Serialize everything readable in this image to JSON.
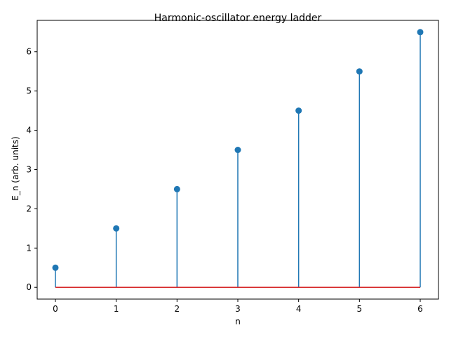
{
  "chart_data": {
    "type": "stem",
    "title": "Harmonic-oscillator energy ladder",
    "xlabel": "n",
    "ylabel": "E_n (arb. units)",
    "x": [
      0,
      1,
      2,
      3,
      4,
      5,
      6
    ],
    "values": [
      0.5,
      1.5,
      2.5,
      3.5,
      4.5,
      5.5,
      6.5
    ],
    "baseline": 0,
    "xlim": [
      -0.3,
      6.3
    ],
    "ylim": [
      -0.3,
      6.8
    ],
    "xticks": [
      0,
      1,
      2,
      3,
      4,
      5,
      6
    ],
    "yticks": [
      0,
      1,
      2,
      3,
      4,
      5,
      6
    ],
    "grid": false,
    "colors": {
      "stem": "#1f77b4",
      "marker": "#1f77b4",
      "baseline": "#d62728"
    }
  }
}
